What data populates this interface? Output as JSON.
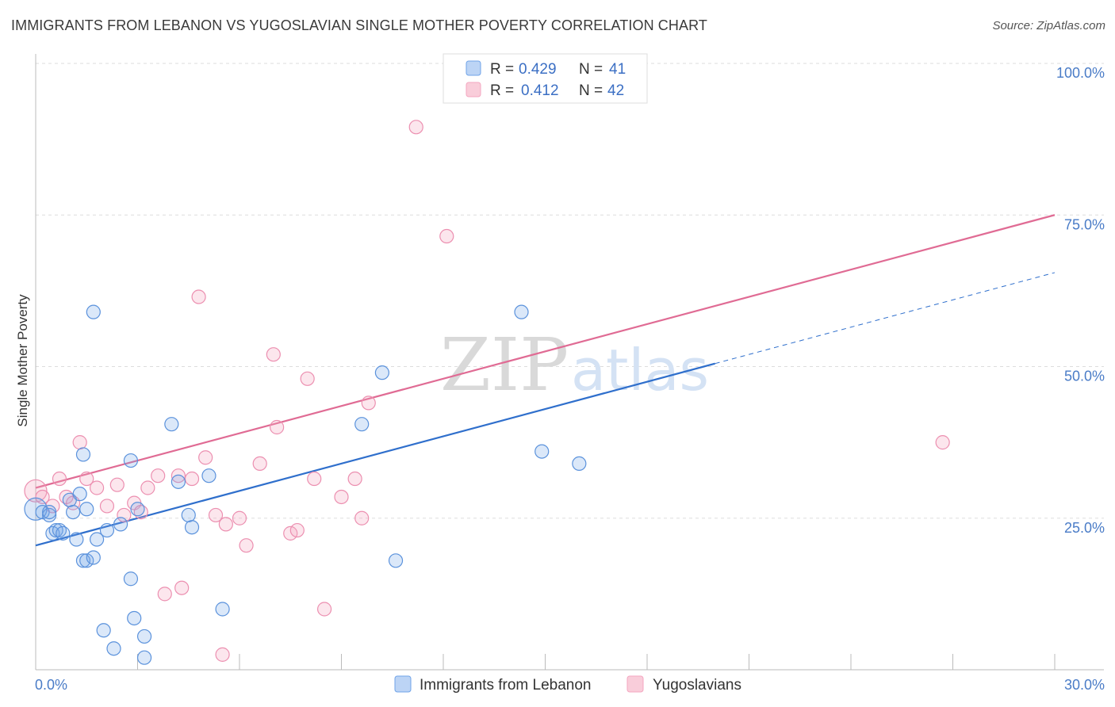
{
  "title": "IMMIGRANTS FROM LEBANON VS YUGOSLAVIAN SINGLE MOTHER POVERTY CORRELATION CHART",
  "source": "Source: ZipAtlas.com",
  "colors": {
    "blue": "#6fa3e8",
    "blue_line": "#2f6fcc",
    "pink": "#f4a6c0",
    "pink_line": "#e06b94",
    "tick": "#4a7cc7"
  },
  "chart_data": {
    "type": "scatter",
    "xlabel": "",
    "ylabel": "Single Mother Poverty",
    "xlim": [
      0,
      30
    ],
    "ylim": [
      0,
      100
    ],
    "x_tick_labels": [
      {
        "value": 0,
        "label": "0.0%"
      },
      {
        "value": 30,
        "label": "30.0%"
      }
    ],
    "y_tick_labels": [
      {
        "value": 25,
        "label": "25.0%"
      },
      {
        "value": 50,
        "label": "50.0%"
      },
      {
        "value": 75,
        "label": "75.0%"
      },
      {
        "value": 100,
        "label": "100.0%"
      }
    ],
    "legend_top": [
      {
        "r_label": "R =",
        "r": "0.429",
        "n_label": "N =",
        "n": "41"
      },
      {
        "r_label": "R =",
        "r": "0.412",
        "n_label": "N =",
        "n": "42"
      }
    ],
    "series": [
      {
        "name": "Immigrants from Lebanon",
        "color": "#6fa3e8",
        "trend": {
          "x0": 0,
          "y0": 20.5,
          "x1": 20,
          "y1": 50.5,
          "dash_to_x": 30,
          "dash_to_y": 65.5
        },
        "points": [
          [
            0.0,
            26.5
          ],
          [
            0.2,
            26.0
          ],
          [
            0.4,
            25.5
          ],
          [
            0.4,
            26.0
          ],
          [
            0.5,
            22.5
          ],
          [
            0.6,
            23.0
          ],
          [
            0.7,
            23.0
          ],
          [
            0.8,
            22.5
          ],
          [
            1.0,
            28.0
          ],
          [
            1.1,
            26.0
          ],
          [
            1.2,
            21.5
          ],
          [
            1.3,
            29.0
          ],
          [
            1.4,
            18.0
          ],
          [
            1.5,
            18.0
          ],
          [
            1.5,
            26.5
          ],
          [
            1.7,
            18.5
          ],
          [
            1.8,
            21.5
          ],
          [
            1.4,
            35.5
          ],
          [
            2.0,
            6.5
          ],
          [
            2.1,
            23.0
          ],
          [
            2.3,
            3.5
          ],
          [
            2.5,
            24.0
          ],
          [
            2.8,
            34.5
          ],
          [
            1.7,
            59.0
          ],
          [
            2.8,
            15.0
          ],
          [
            2.9,
            8.5
          ],
          [
            3.2,
            5.5
          ],
          [
            3.2,
            2.0
          ],
          [
            3.0,
            26.5
          ],
          [
            4.0,
            40.5
          ],
          [
            4.2,
            31.0
          ],
          [
            4.5,
            25.5
          ],
          [
            4.6,
            23.5
          ],
          [
            5.1,
            32.0
          ],
          [
            5.5,
            10.0
          ],
          [
            9.6,
            40.5
          ],
          [
            10.2,
            49.0
          ],
          [
            10.6,
            18.0
          ],
          [
            14.3,
            59.0
          ],
          [
            14.9,
            36.0
          ],
          [
            16.0,
            34.0
          ]
        ]
      },
      {
        "name": "Yugoslavians",
        "color": "#f4a6c0",
        "trend": {
          "x0": 0,
          "y0": 30.0,
          "x1": 30,
          "y1": 75.0
        },
        "points": [
          [
            0.0,
            29.5
          ],
          [
            0.2,
            28.5
          ],
          [
            0.5,
            27.0
          ],
          [
            0.7,
            31.5
          ],
          [
            0.9,
            28.5
          ],
          [
            1.1,
            27.5
          ],
          [
            1.3,
            37.5
          ],
          [
            1.5,
            31.5
          ],
          [
            1.8,
            30.0
          ],
          [
            2.1,
            27.0
          ],
          [
            2.4,
            30.5
          ],
          [
            2.6,
            25.5
          ],
          [
            2.9,
            27.5
          ],
          [
            3.1,
            26.0
          ],
          [
            3.3,
            30.0
          ],
          [
            3.6,
            32.0
          ],
          [
            3.8,
            12.5
          ],
          [
            4.2,
            32.0
          ],
          [
            4.3,
            13.5
          ],
          [
            4.6,
            31.5
          ],
          [
            4.8,
            61.5
          ],
          [
            5.0,
            35.0
          ],
          [
            5.3,
            25.5
          ],
          [
            5.5,
            2.5
          ],
          [
            5.6,
            24.0
          ],
          [
            6.0,
            25.0
          ],
          [
            6.2,
            20.5
          ],
          [
            6.6,
            34.0
          ],
          [
            7.0,
            52.0
          ],
          [
            7.1,
            40.0
          ],
          [
            7.5,
            22.5
          ],
          [
            7.7,
            23.0
          ],
          [
            8.0,
            48.0
          ],
          [
            8.2,
            31.5
          ],
          [
            8.5,
            10.0
          ],
          [
            9.0,
            28.5
          ],
          [
            9.4,
            31.5
          ],
          [
            9.6,
            25.0
          ],
          [
            9.8,
            44.0
          ],
          [
            11.2,
            89.5
          ],
          [
            12.1,
            71.5
          ],
          [
            26.7,
            37.5
          ]
        ]
      }
    ]
  }
}
